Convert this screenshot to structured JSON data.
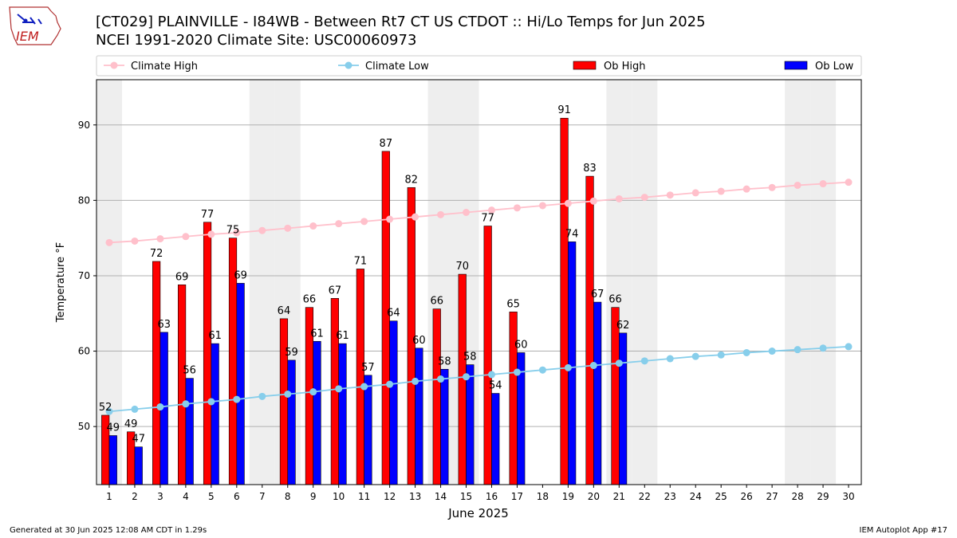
{
  "title_line1": "[CT029] PLAINVILLE - I84WB - Between Rt7 CT US  CTDOT :: Hi/Lo Temps for Jun 2025",
  "title_line2": "NCEI 1991-2020 Climate Site: USC00060973",
  "footer_left": "Generated at 30 Jun 2025 12:08 AM CDT in 1.29s",
  "footer_right": "IEM Autoplot App #17",
  "logo_text": "IEM",
  "colors": {
    "climate_high": "#ffc0cb",
    "climate_low": "#87ceeb",
    "ob_high": "#ff0000",
    "ob_low": "#0000ff",
    "weekend_band": "#eeeeee"
  },
  "chart_data": {
    "type": "bar",
    "xlabel": "June 2025",
    "ylabel": "Temperature °F",
    "ylim": [
      42.3,
      96.0
    ],
    "yticks": [
      50,
      60,
      70,
      80,
      90
    ],
    "grid": true,
    "legend_placement": "top",
    "x": [
      1,
      2,
      3,
      4,
      5,
      6,
      7,
      8,
      9,
      10,
      11,
      12,
      13,
      14,
      15,
      16,
      17,
      18,
      19,
      20,
      21,
      22,
      23,
      24,
      25,
      26,
      27,
      28,
      29,
      30
    ],
    "weekend_days": [
      1,
      7,
      8,
      14,
      15,
      21,
      22,
      28,
      29
    ],
    "series": [
      {
        "name": "Climate High",
        "kind": "line",
        "values": [
          74.4,
          74.6,
          74.9,
          75.2,
          75.5,
          75.7,
          76.0,
          76.3,
          76.6,
          76.9,
          77.2,
          77.5,
          77.8,
          78.1,
          78.4,
          78.7,
          79.0,
          79.3,
          79.6,
          79.9,
          80.2,
          80.4,
          80.7,
          81.0,
          81.2,
          81.5,
          81.7,
          82.0,
          82.2,
          82.4
        ]
      },
      {
        "name": "Climate Low",
        "kind": "line",
        "values": [
          52.0,
          52.3,
          52.6,
          53.0,
          53.3,
          53.6,
          54.0,
          54.3,
          54.6,
          55.0,
          55.3,
          55.6,
          56.0,
          56.3,
          56.6,
          56.9,
          57.2,
          57.5,
          57.8,
          58.1,
          58.4,
          58.7,
          59.0,
          59.3,
          59.5,
          59.8,
          60.0,
          60.2,
          60.4,
          60.6
        ]
      },
      {
        "name": "Ob High",
        "kind": "bar",
        "values": [
          51.5,
          49.3,
          71.9,
          68.8,
          77.1,
          75.0,
          null,
          64.3,
          65.8,
          67.0,
          70.9,
          86.5,
          81.7,
          65.6,
          70.2,
          76.6,
          65.2,
          null,
          90.9,
          83.2,
          65.8,
          null,
          null,
          null,
          null,
          null,
          null,
          null,
          null,
          null
        ],
        "labels": [
          "52",
          "49",
          "72",
          "69",
          "77",
          "75",
          "",
          "64",
          "66",
          "67",
          "71",
          "87",
          "82",
          "66",
          "70",
          "77",
          "65",
          "",
          "91",
          "83",
          "66",
          "",
          "",
          "",
          "",
          "",
          "",
          "",
          "",
          ""
        ]
      },
      {
        "name": "Ob Low",
        "kind": "bar",
        "values": [
          48.8,
          47.3,
          62.5,
          56.4,
          61.0,
          69.0,
          null,
          58.8,
          61.3,
          61.0,
          56.8,
          64.0,
          60.4,
          57.6,
          58.2,
          54.4,
          59.8,
          null,
          74.5,
          66.5,
          62.4,
          null,
          null,
          null,
          null,
          null,
          null,
          null,
          null,
          null
        ],
        "labels": [
          "49",
          "47",
          "63",
          "56",
          "61",
          "69",
          "",
          "59",
          "61",
          "61",
          "57",
          "64",
          "60",
          "58",
          "58",
          "54",
          "60",
          "",
          "74",
          "67",
          "62",
          "",
          "",
          "",
          "",
          "",
          "",
          "",
          "",
          ""
        ]
      }
    ]
  }
}
